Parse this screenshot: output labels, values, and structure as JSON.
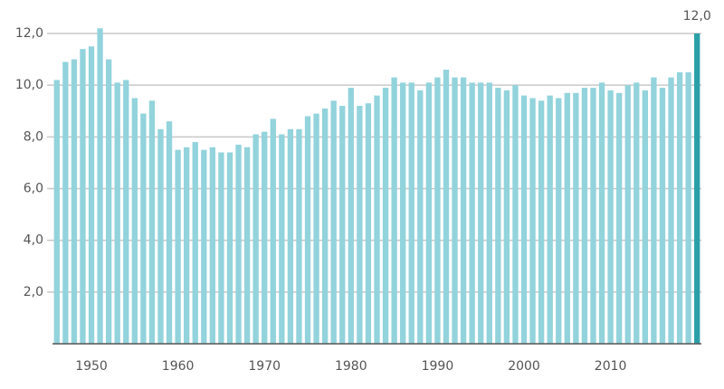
{
  "chart_data": {
    "type": "bar",
    "x": [
      1946,
      1947,
      1948,
      1949,
      1950,
      1951,
      1952,
      1953,
      1954,
      1955,
      1956,
      1957,
      1958,
      1959,
      1960,
      1961,
      1962,
      1963,
      1964,
      1965,
      1966,
      1967,
      1968,
      1969,
      1970,
      1971,
      1972,
      1973,
      1974,
      1975,
      1976,
      1977,
      1978,
      1979,
      1980,
      1981,
      1982,
      1983,
      1984,
      1985,
      1986,
      1987,
      1988,
      1989,
      1990,
      1991,
      1992,
      1993,
      1994,
      1995,
      1996,
      1997,
      1998,
      1999,
      2000,
      2001,
      2002,
      2003,
      2004,
      2005,
      2006,
      2007,
      2008,
      2009,
      2010,
      2011,
      2012,
      2013,
      2014,
      2015,
      2016,
      2017,
      2018,
      2019,
      2020
    ],
    "values": [
      10.2,
      10.9,
      11.0,
      11.4,
      11.5,
      12.2,
      11.0,
      10.1,
      10.2,
      9.5,
      8.9,
      9.4,
      8.3,
      8.6,
      7.5,
      7.6,
      7.8,
      7.5,
      7.6,
      7.4,
      7.4,
      7.7,
      7.6,
      8.1,
      8.2,
      8.7,
      8.1,
      8.3,
      8.3,
      8.8,
      8.9,
      9.1,
      9.4,
      9.2,
      9.9,
      9.2,
      9.3,
      9.6,
      9.9,
      10.3,
      10.1,
      10.1,
      9.8,
      10.1,
      10.3,
      10.6,
      10.3,
      10.3,
      10.1,
      10.1,
      10.1,
      9.9,
      9.8,
      10.0,
      9.6,
      9.5,
      9.4,
      9.6,
      9.5,
      9.7,
      9.7,
      9.9,
      9.9,
      10.1,
      9.8,
      9.7,
      10.0,
      10.1,
      9.8,
      10.3,
      9.9,
      10.3,
      10.5,
      10.5,
      12.0
    ],
    "value_labels": [
      null,
      null,
      null,
      null,
      null,
      null,
      null,
      null,
      null,
      null,
      null,
      null,
      null,
      null,
      null,
      null,
      null,
      null,
      null,
      null,
      null,
      null,
      null,
      null,
      null,
      null,
      null,
      null,
      null,
      null,
      null,
      null,
      null,
      null,
      null,
      null,
      null,
      null,
      null,
      null,
      null,
      null,
      null,
      null,
      null,
      null,
      null,
      null,
      null,
      null,
      null,
      null,
      null,
      null,
      null,
      null,
      null,
      null,
      null,
      null,
      null,
      null,
      null,
      null,
      null,
      null,
      null,
      null,
      null,
      null,
      null,
      null,
      null,
      null,
      "12,0"
    ],
    "color": "#92d3dc",
    "label_bar_color": "#2a9fa8",
    "xlim": [
      1945.5,
      2020.5
    ],
    "xticks": [
      1950,
      1960,
      1970,
      1980,
      1990,
      2000,
      2010
    ],
    "ylim": [
      0,
      12.7
    ],
    "yticks": [
      0,
      {
        "value": 2,
        "label": "2,0"
      },
      {
        "value": 4,
        "label": "4,0"
      },
      {
        "value": 6,
        "label": "6,0"
      },
      {
        "value": 8,
        "label": "8,0"
      },
      {
        "value": 10,
        "label": "10,0"
      },
      {
        "value": 12,
        "label": "12,0"
      }
    ],
    "grid": true
  }
}
